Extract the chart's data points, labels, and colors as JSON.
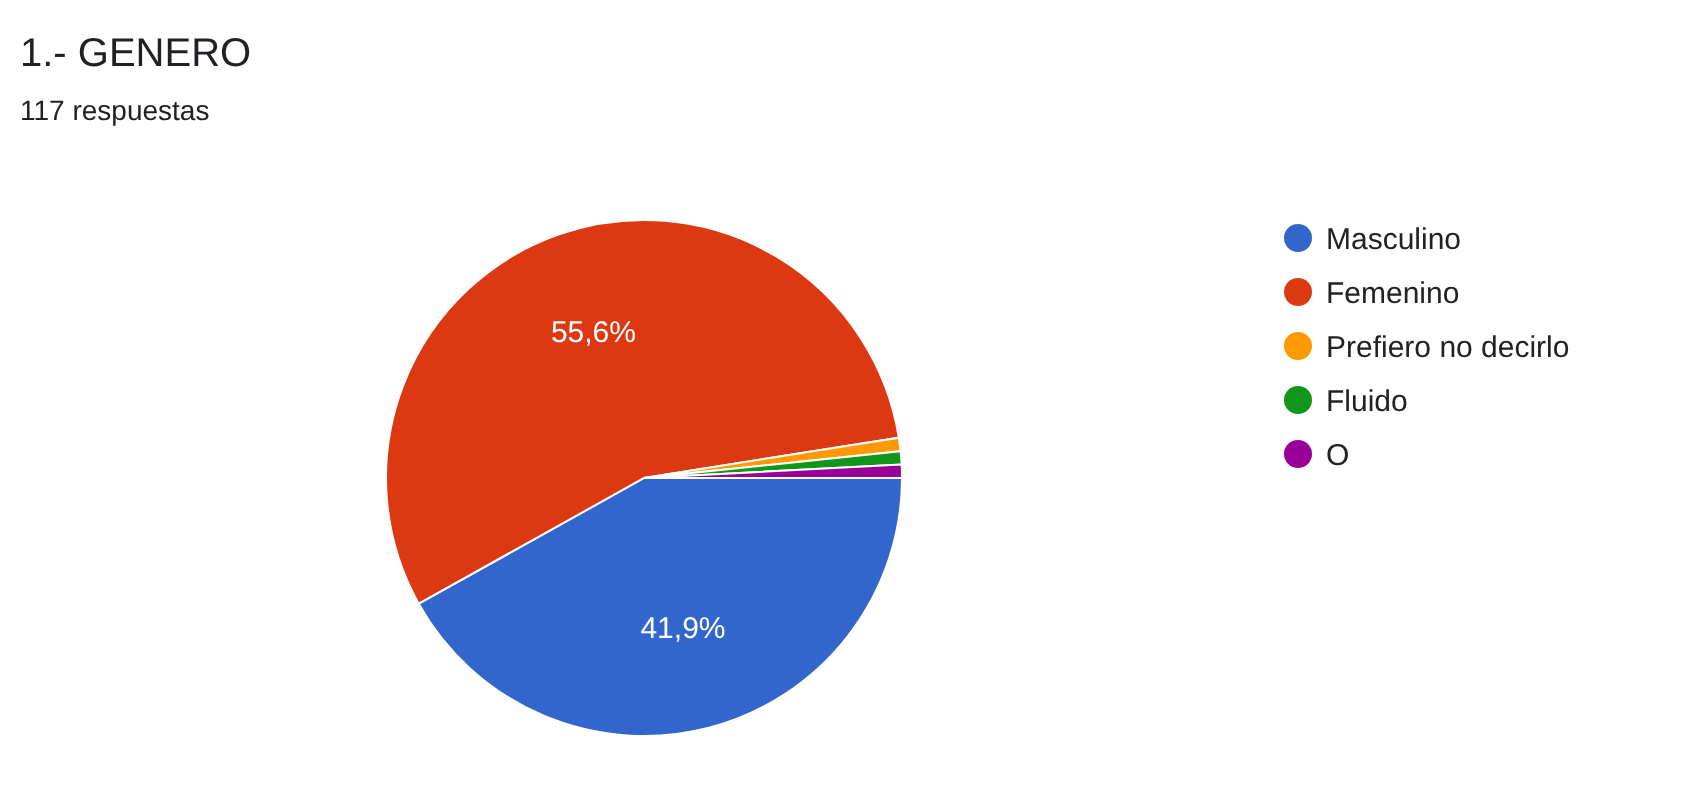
{
  "chart_data": {
    "type": "pie",
    "title": "1.- GENERO",
    "subtitle": "117 respuestas",
    "categories": [
      "Masculino",
      "Femenino",
      "Prefiero no decirlo",
      "Fluido",
      "O"
    ],
    "values": [
      41.9,
      55.6,
      0.84,
      0.83,
      0.83
    ],
    "colors": [
      "#3366cc",
      "#dc3912",
      "#ff9900",
      "#109618",
      "#990099"
    ],
    "value_labels": [
      "41,9%",
      "55,6%",
      null,
      null,
      null
    ],
    "legend": "right"
  }
}
